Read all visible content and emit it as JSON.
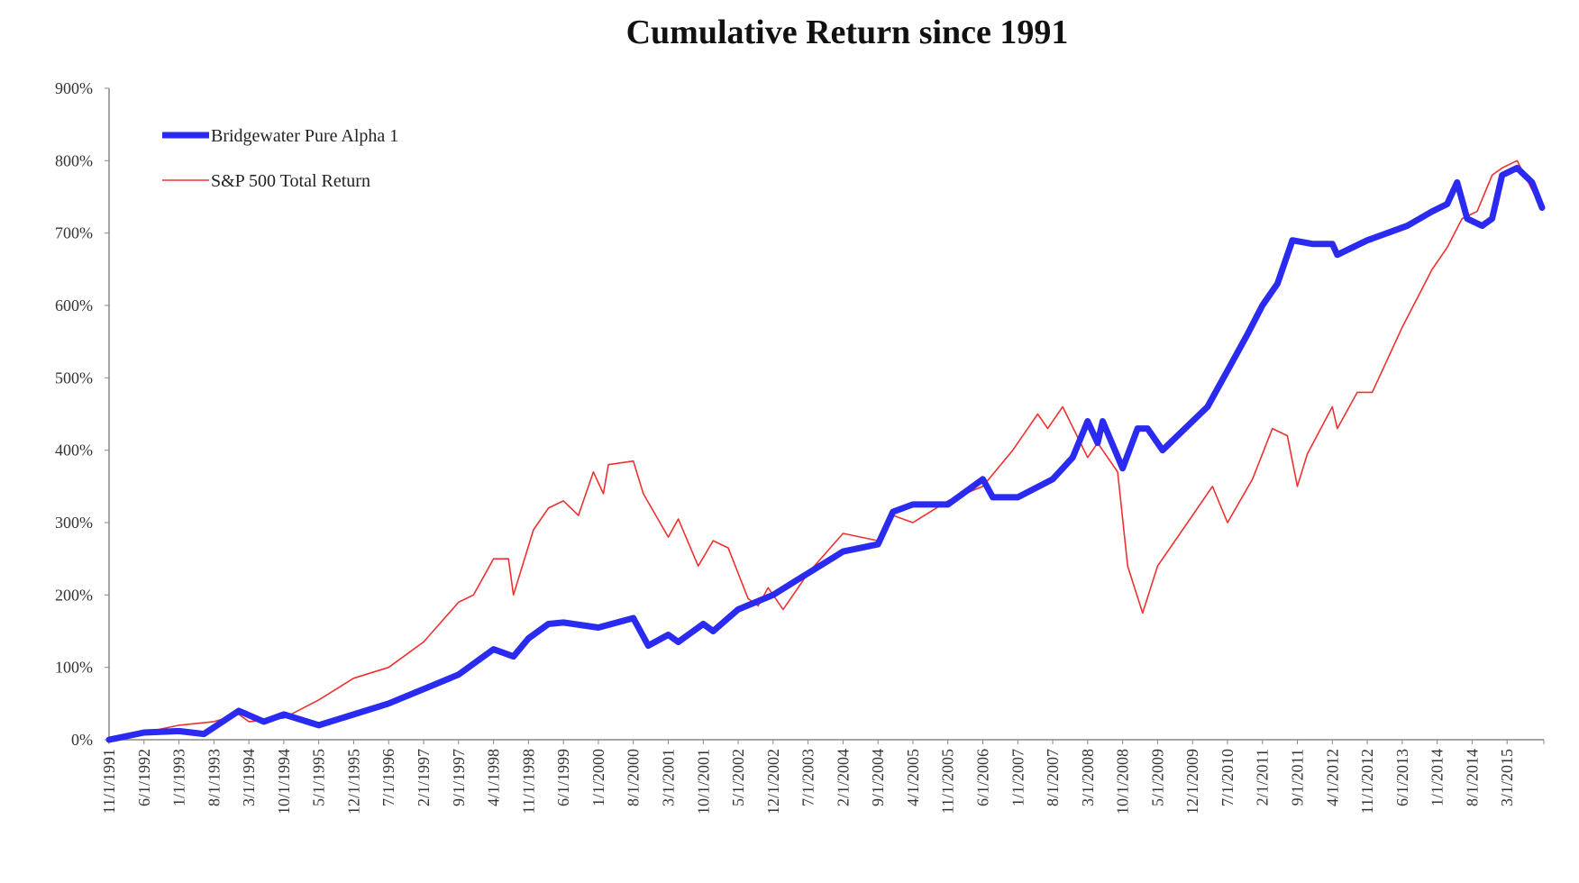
{
  "chart_data": {
    "type": "line",
    "title": "Cumulative Return since 1991",
    "xlabel": "",
    "ylabel": "",
    "ylim": [
      0,
      900
    ],
    "y_ticks": [
      "0%",
      "100%",
      "200%",
      "300%",
      "400%",
      "500%",
      "600%",
      "700%",
      "800%",
      "900%"
    ],
    "x_start": "1991-11",
    "x_end": "2015-10",
    "x_ticks": [
      "11/1/1991",
      "6/1/1992",
      "1/1/1993",
      "8/1/1993",
      "3/1/1994",
      "10/1/1994",
      "5/1/1995",
      "12/1/1995",
      "7/1/1996",
      "2/1/1997",
      "9/1/1997",
      "4/1/1998",
      "11/1/1998",
      "6/1/1999",
      "1/1/2000",
      "8/1/2000",
      "3/1/2001",
      "10/1/2001",
      "5/1/2002",
      "12/1/2002",
      "7/1/2003",
      "2/1/2004",
      "9/1/2004",
      "4/1/2005",
      "11/1/2005",
      "6/1/2006",
      "1/1/2007",
      "8/1/2007",
      "3/1/2008",
      "10/1/2008",
      "5/1/2009",
      "12/1/2009",
      "7/1/2010",
      "2/1/2011",
      "9/1/2011",
      "4/1/2012",
      "11/1/2012",
      "6/1/2013",
      "1/1/2014",
      "8/1/2014",
      "3/1/2015"
    ],
    "legend_position": "top-left",
    "grid": false,
    "series": [
      {
        "name": "Bridgewater Pure Alpha 1",
        "color": "#2a2af0",
        "points": [
          [
            "1991-11",
            0
          ],
          [
            "1992-06",
            10
          ],
          [
            "1993-01",
            12
          ],
          [
            "1993-06",
            8
          ],
          [
            "1994-01",
            40
          ],
          [
            "1994-06",
            25
          ],
          [
            "1994-10",
            35
          ],
          [
            "1995-05",
            20
          ],
          [
            "1995-12",
            35
          ],
          [
            "1996-07",
            50
          ],
          [
            "1997-02",
            70
          ],
          [
            "1997-09",
            90
          ],
          [
            "1998-04",
            125
          ],
          [
            "1998-08",
            115
          ],
          [
            "1998-11",
            140
          ],
          [
            "1999-03",
            160
          ],
          [
            "1999-06",
            162
          ],
          [
            "2000-01",
            155
          ],
          [
            "2000-08",
            168
          ],
          [
            "2000-11",
            130
          ],
          [
            "2001-03",
            145
          ],
          [
            "2001-05",
            135
          ],
          [
            "2001-10",
            160
          ],
          [
            "2001-12",
            150
          ],
          [
            "2002-05",
            180
          ],
          [
            "2002-12",
            200
          ],
          [
            "2003-07",
            230
          ],
          [
            "2004-02",
            260
          ],
          [
            "2004-09",
            270
          ],
          [
            "2004-12",
            315
          ],
          [
            "2005-04",
            325
          ],
          [
            "2005-11",
            325
          ],
          [
            "2006-06",
            360
          ],
          [
            "2006-08",
            335
          ],
          [
            "2007-01",
            335
          ],
          [
            "2007-08",
            360
          ],
          [
            "2007-12",
            390
          ],
          [
            "2008-03",
            440
          ],
          [
            "2008-05",
            410
          ],
          [
            "2008-06",
            440
          ],
          [
            "2008-10",
            375
          ],
          [
            "2009-01",
            430
          ],
          [
            "2009-03",
            430
          ],
          [
            "2009-06",
            400
          ],
          [
            "2009-12",
            440
          ],
          [
            "2010-03",
            460
          ],
          [
            "2010-07",
            510
          ],
          [
            "2010-11",
            560
          ],
          [
            "2011-02",
            600
          ],
          [
            "2011-05",
            630
          ],
          [
            "2011-08",
            690
          ],
          [
            "2011-12",
            685
          ],
          [
            "2012-04",
            685
          ],
          [
            "2012-05",
            670
          ],
          [
            "2012-11",
            690
          ],
          [
            "2013-03",
            700
          ],
          [
            "2013-07",
            710
          ],
          [
            "2013-12",
            730
          ],
          [
            "2014-03",
            740
          ],
          [
            "2014-05",
            770
          ],
          [
            "2014-07",
            720
          ],
          [
            "2014-10",
            710
          ],
          [
            "2014-12",
            720
          ],
          [
            "2015-02",
            780
          ],
          [
            "2015-05",
            790
          ],
          [
            "2015-08",
            770
          ],
          [
            "2015-10",
            735
          ]
        ]
      },
      {
        "name": "S&P 500 Total Return",
        "color": "#f03030",
        "points": [
          [
            "1991-11",
            0
          ],
          [
            "1992-06",
            10
          ],
          [
            "1993-01",
            20
          ],
          [
            "1993-08",
            25
          ],
          [
            "1994-01",
            35
          ],
          [
            "1994-03",
            25
          ],
          [
            "1994-10",
            30
          ],
          [
            "1995-05",
            55
          ],
          [
            "1995-12",
            85
          ],
          [
            "1996-07",
            100
          ],
          [
            "1997-02",
            135
          ],
          [
            "1997-09",
            190
          ],
          [
            "1997-12",
            200
          ],
          [
            "1998-04",
            250
          ],
          [
            "1998-07",
            250
          ],
          [
            "1998-08",
            200
          ],
          [
            "1998-12",
            290
          ],
          [
            "1999-03",
            320
          ],
          [
            "1999-06",
            330
          ],
          [
            "1999-09",
            310
          ],
          [
            "1999-12",
            370
          ],
          [
            "2000-02",
            340
          ],
          [
            "2000-03",
            380
          ],
          [
            "2000-08",
            385
          ],
          [
            "2000-10",
            340
          ],
          [
            "2001-03",
            280
          ],
          [
            "2001-05",
            305
          ],
          [
            "2001-09",
            240
          ],
          [
            "2001-12",
            275
          ],
          [
            "2002-03",
            265
          ],
          [
            "2002-07",
            195
          ],
          [
            "2002-09",
            185
          ],
          [
            "2002-11",
            210
          ],
          [
            "2003-02",
            180
          ],
          [
            "2003-07",
            230
          ],
          [
            "2004-02",
            285
          ],
          [
            "2004-09",
            275
          ],
          [
            "2004-12",
            310
          ],
          [
            "2005-04",
            300
          ],
          [
            "2005-11",
            330
          ],
          [
            "2006-06",
            350
          ],
          [
            "2006-12",
            400
          ],
          [
            "2007-05",
            450
          ],
          [
            "2007-07",
            430
          ],
          [
            "2007-10",
            460
          ],
          [
            "2008-03",
            390
          ],
          [
            "2008-05",
            410
          ],
          [
            "2008-09",
            370
          ],
          [
            "2008-11",
            240
          ],
          [
            "2009-02",
            175
          ],
          [
            "2009-05",
            240
          ],
          [
            "2009-12",
            310
          ],
          [
            "2010-04",
            350
          ],
          [
            "2010-07",
            300
          ],
          [
            "2010-12",
            360
          ],
          [
            "2011-04",
            430
          ],
          [
            "2011-07",
            420
          ],
          [
            "2011-09",
            350
          ],
          [
            "2011-11",
            395
          ],
          [
            "2012-04",
            460
          ],
          [
            "2012-05",
            430
          ],
          [
            "2012-09",
            480
          ],
          [
            "2012-12",
            480
          ],
          [
            "2013-06",
            570
          ],
          [
            "2013-12",
            650
          ],
          [
            "2014-03",
            680
          ],
          [
            "2014-06",
            720
          ],
          [
            "2014-09",
            730
          ],
          [
            "2014-12",
            780
          ],
          [
            "2015-02",
            790
          ],
          [
            "2015-05",
            800
          ],
          [
            "2015-08",
            760
          ],
          [
            "2015-10",
            735
          ]
        ]
      }
    ]
  }
}
